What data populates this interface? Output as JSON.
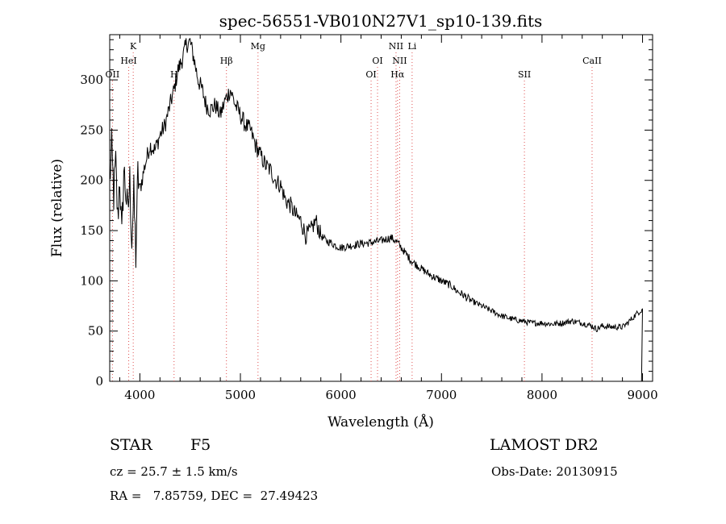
{
  "chart_data": {
    "type": "line",
    "title": "spec-56551-VB010N27V1_sp10-139.fits",
    "xlabel": "Wavelength (Å)",
    "ylabel": "Flux (relative)",
    "xlim": [
      3700,
      9100
    ],
    "ylim": [
      0,
      345
    ],
    "xticks": [
      4000,
      5000,
      6000,
      7000,
      8000,
      9000
    ],
    "xtick_labels": [
      "4000",
      "5000",
      "6000",
      "7000",
      "8000",
      "9000"
    ],
    "yticks": [
      0,
      50,
      100,
      150,
      200,
      250,
      300
    ],
    "ytick_labels": [
      "0",
      "50",
      "100",
      "150",
      "200",
      "250",
      "300"
    ],
    "line_color": "#000000",
    "marker_line_color": "#e05050",
    "series": [
      {
        "x": [
          3700,
          3720,
          3740,
          3760,
          3780,
          3800,
          3820,
          3840,
          3860,
          3880,
          3900,
          3920,
          3940,
          3960,
          3980,
          4000,
          4050,
          4100,
          4150,
          4200,
          4250,
          4300,
          4340,
          4380,
          4420,
          4460,
          4500,
          4540,
          4580,
          4620,
          4660,
          4700,
          4750,
          4800,
          4850,
          4900,
          4950,
          5000,
          5050,
          5100,
          5150,
          5200,
          5250,
          5300,
          5350,
          5400,
          5450,
          5500,
          5550,
          5600,
          5650,
          5700,
          5750,
          5800,
          5850,
          5900,
          5950,
          6000,
          6100,
          6200,
          6300,
          6400,
          6500,
          6563,
          6600,
          6700,
          6800,
          6900,
          7000,
          7100,
          7150,
          7200,
          7300,
          7400,
          7500,
          7600,
          7700,
          7800,
          7900,
          8000,
          8100,
          8200,
          8300,
          8400,
          8500,
          8542,
          8600,
          8700,
          8800,
          8850,
          8900,
          8950,
          9000
        ],
        "y": [
          200,
          230,
          185,
          215,
          160,
          205,
          140,
          210,
          190,
          165,
          200,
          140,
          185,
          125,
          205,
          190,
          215,
          235,
          230,
          245,
          255,
          275,
          290,
          310,
          320,
          335,
          338,
          320,
          300,
          290,
          275,
          270,
          275,
          265,
          280,
          290,
          275,
          265,
          255,
          250,
          235,
          225,
          215,
          210,
          200,
          195,
          180,
          175,
          165,
          160,
          145,
          150,
          160,
          145,
          140,
          138,
          135,
          133,
          135,
          137,
          138,
          140,
          143,
          138,
          133,
          120,
          112,
          105,
          100,
          95,
          90,
          87,
          80,
          75,
          70,
          65,
          62,
          60,
          58,
          58,
          57,
          58,
          60,
          58,
          55,
          52,
          55,
          54,
          54,
          58,
          63,
          68,
          72
        ]
      }
    ],
    "lines": [
      {
        "label": "OII",
        "x": 3727,
        "row": 3
      },
      {
        "label": "K",
        "x": 3934,
        "row": 1
      },
      {
        "label": "HeI",
        "x": 3889,
        "row": 2
      },
      {
        "label": "H",
        "x": 4340,
        "row": 3
      },
      {
        "label": "Hβ",
        "x": 4861,
        "row": 2
      },
      {
        "label": "Mg",
        "x": 5175,
        "row": 1
      },
      {
        "label": "OI",
        "x": 6300,
        "row": 3
      },
      {
        "label": "OI",
        "x": 6364,
        "row": 2
      },
      {
        "label": "NII",
        "x": 6548,
        "row": 1
      },
      {
        "label": "NII",
        "x": 6584,
        "row": 2
      },
      {
        "label": "Li",
        "x": 6708,
        "row": 1
      },
      {
        "label": "Hα",
        "x": 6563,
        "row": 3
      },
      {
        "label": "SII",
        "x": 7825,
        "row": 3
      },
      {
        "label": "CaII",
        "x": 8498,
        "row": 2
      }
    ]
  },
  "info": {
    "object_type": "STAR",
    "subclass": "F5",
    "survey": "LAMOST DR2",
    "cz": "cz = 25.7 ± 1.5 km/s",
    "obs_date": "Obs-Date: 20130915",
    "coords": "RA =   7.85759, DEC =  27.49423"
  }
}
